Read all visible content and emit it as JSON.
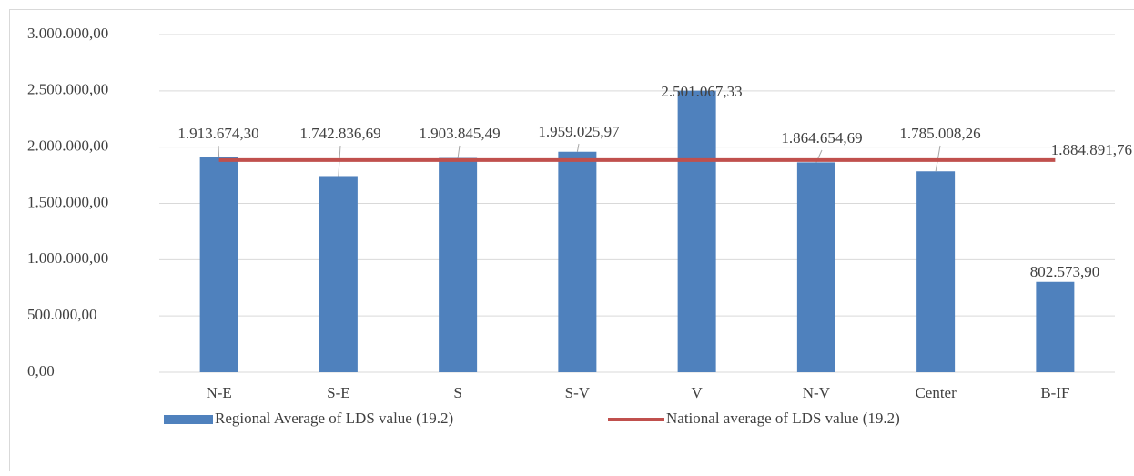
{
  "chart_data": {
    "type": "bar",
    "categories": [
      "N-E",
      "S-E",
      "S",
      "S-V",
      "V",
      "N-V",
      "Center",
      "B-IF"
    ],
    "series": [
      {
        "name": "Regional Average of LDS value (19.2)",
        "type": "bar",
        "color": "#4f81bd",
        "values": [
          1913674.3,
          1742836.69,
          1903845.49,
          1959025.97,
          2501067.33,
          1864654.69,
          1785008.26,
          802573.9
        ],
        "value_labels": [
          "1.913.674,30",
          "1.742.836,69",
          "1.903.845,49",
          "1.959.025,97",
          "2.501.067,33",
          "1.864.654,69",
          "1.785.008,26",
          "802.573,90"
        ]
      },
      {
        "name": "National average of LDS value (19.2)",
        "type": "line",
        "color": "#c0504d",
        "values": [
          1884891.76,
          1884891.76,
          1884891.76,
          1884891.76,
          1884891.76,
          1884891.76,
          1884891.76,
          1884891.76
        ],
        "value_labels": [
          null,
          null,
          null,
          null,
          null,
          null,
          null,
          "1.884.891,76"
        ]
      }
    ],
    "ylim": [
      0,
      3000000
    ],
    "yticks": [
      {
        "value": 0,
        "label": "0,00"
      },
      {
        "value": 500000,
        "label": "500.000,00"
      },
      {
        "value": 1000000,
        "label": "1.000.000,00"
      },
      {
        "value": 1500000,
        "label": "1.500.000,00"
      },
      {
        "value": 2000000,
        "label": "2.000.000,00"
      },
      {
        "value": 2500000,
        "label": "2.500.000,00"
      },
      {
        "value": 3000000,
        "label": "3.000.000,00"
      }
    ],
    "grid": true,
    "legend": "bottom"
  }
}
